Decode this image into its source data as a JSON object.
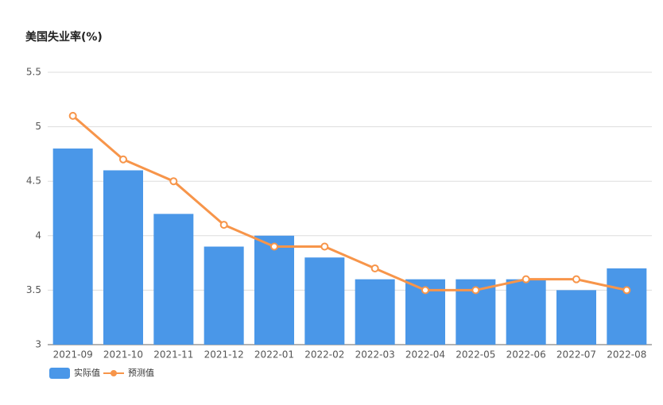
{
  "chart_data": {
    "type": "bar_line",
    "title": "美国失业率(%)",
    "categories": [
      "2021-09",
      "2021-10",
      "2021-11",
      "2021-12",
      "2022-01",
      "2022-02",
      "2022-03",
      "2022-04",
      "2022-05",
      "2022-06",
      "2022-07",
      "2022-08"
    ],
    "series": [
      {
        "name": "实际值",
        "color": "#4a97e8",
        "kind": "bar",
        "values": [
          4.8,
          4.6,
          4.2,
          3.9,
          4.0,
          3.8,
          3.6,
          3.6,
          3.6,
          3.6,
          3.5,
          3.7
        ]
      },
      {
        "name": "预测值",
        "color": "#f7954a",
        "kind": "line",
        "values": [
          5.1,
          4.7,
          4.5,
          4.1,
          3.9,
          3.9,
          3.7,
          3.5,
          3.5,
          3.6,
          3.6,
          3.5
        ]
      }
    ],
    "ylim": [
      3,
      5.5
    ],
    "yticks": [
      3,
      3.5,
      4,
      4.5,
      5,
      5.5
    ],
    "grid": true
  }
}
